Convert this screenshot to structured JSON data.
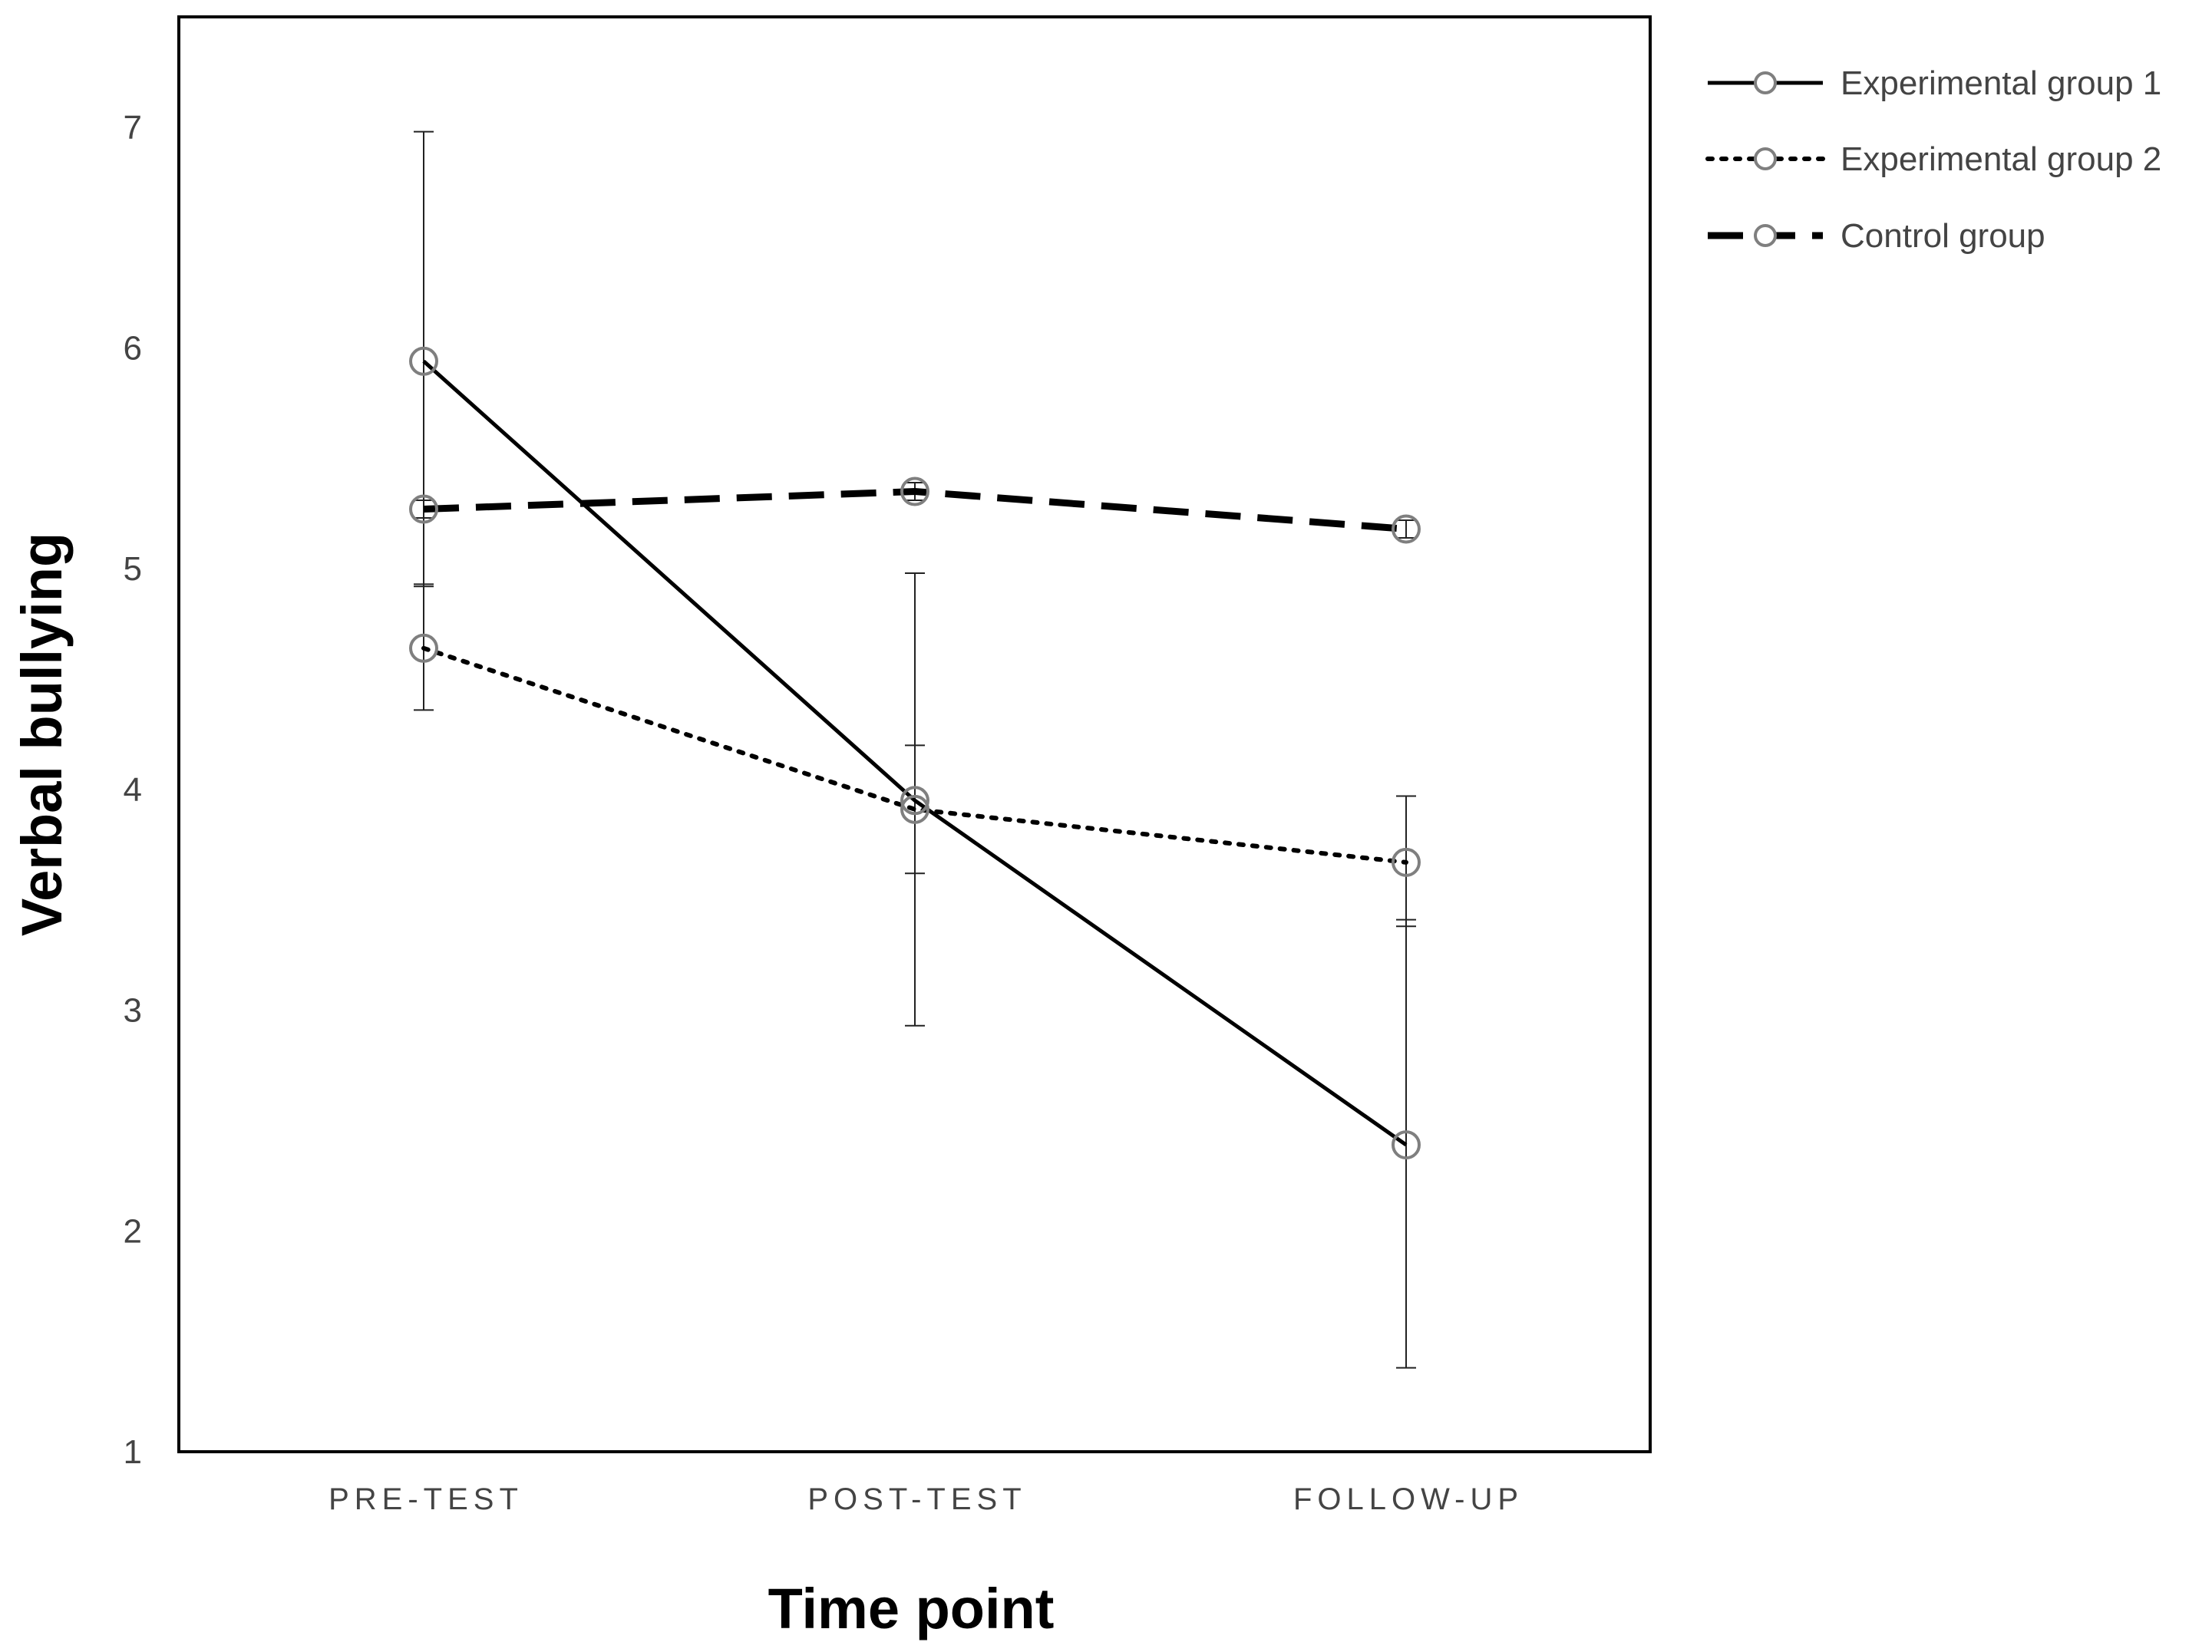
{
  "chart_data": {
    "type": "line",
    "title": "",
    "xlabel": "Time point",
    "ylabel": "Verbal bullying",
    "categories": [
      "PRE-TEST",
      "POST-TEST",
      "FOLLOW-UP"
    ],
    "ylim": [
      1,
      7.5
    ],
    "yticks": [
      1,
      2,
      3,
      4,
      5,
      6,
      7
    ],
    "grid": false,
    "legend_position": "top-right-outside",
    "series": [
      {
        "name": "Experimental group 1",
        "line_style": "solid",
        "values": [
          5.94,
          3.95,
          2.39
        ],
        "error_low": [
          4.92,
          2.93,
          1.38
        ],
        "error_high": [
          6.98,
          4.98,
          3.41
        ]
      },
      {
        "name": "Experimental group 2",
        "line_style": "dotted",
        "values": [
          4.64,
          3.91,
          3.67
        ],
        "error_low": [
          4.36,
          3.62,
          3.38
        ],
        "error_high": [
          4.93,
          4.2,
          3.97
        ]
      },
      {
        "name": "Control group",
        "line_style": "dashed",
        "values": [
          5.27,
          5.35,
          5.18
        ],
        "error_low": [
          5.23,
          5.31,
          5.14
        ],
        "error_high": [
          5.31,
          5.39,
          5.22
        ]
      }
    ],
    "colors": {
      "line": "#000000",
      "marker": "#7f7f7f",
      "errorbar": "#222222",
      "text": "#444444"
    }
  }
}
